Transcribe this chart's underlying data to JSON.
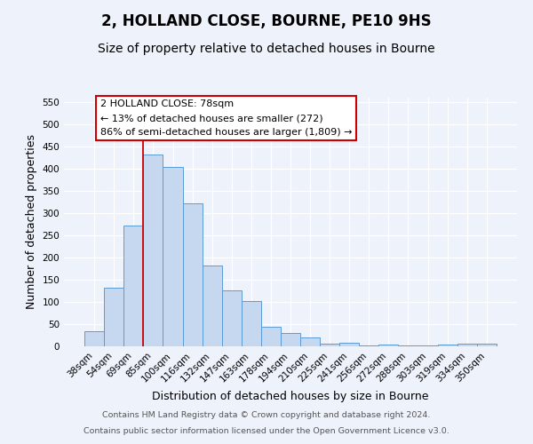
{
  "title": "2, HOLLAND CLOSE, BOURNE, PE10 9HS",
  "subtitle": "Size of property relative to detached houses in Bourne",
  "xlabel": "Distribution of detached houses by size in Bourne",
  "ylabel": "Number of detached properties",
  "categories": [
    "38sqm",
    "54sqm",
    "69sqm",
    "85sqm",
    "100sqm",
    "116sqm",
    "132sqm",
    "147sqm",
    "163sqm",
    "178sqm",
    "194sqm",
    "210sqm",
    "225sqm",
    "241sqm",
    "256sqm",
    "272sqm",
    "288sqm",
    "303sqm",
    "319sqm",
    "334sqm",
    "350sqm"
  ],
  "values": [
    35,
    133,
    272,
    432,
    405,
    322,
    183,
    127,
    103,
    45,
    30,
    20,
    7,
    8,
    3,
    5,
    2,
    2,
    5,
    6,
    6
  ],
  "bar_color": "#c5d8f0",
  "bar_edge_color": "#5b9bd5",
  "vline_color": "#cc0000",
  "annotation_title": "2 HOLLAND CLOSE: 78sqm",
  "annotation_line1": "← 13% of detached houses are smaller (272)",
  "annotation_line2": "86% of semi-detached houses are larger (1,809) →",
  "annotation_box_color": "#ffffff",
  "annotation_box_edge": "#cc0000",
  "ylim": [
    0,
    560
  ],
  "yticks": [
    0,
    50,
    100,
    150,
    200,
    250,
    300,
    350,
    400,
    450,
    500,
    550
  ],
  "footer_line1": "Contains HM Land Registry data © Crown copyright and database right 2024.",
  "footer_line2": "Contains public sector information licensed under the Open Government Licence v3.0.",
  "title_fontsize": 12,
  "subtitle_fontsize": 10,
  "axis_label_fontsize": 9,
  "tick_fontsize": 7.5,
  "annotation_fontsize": 8,
  "footer_fontsize": 6.8,
  "background_color": "#eef2fb"
}
